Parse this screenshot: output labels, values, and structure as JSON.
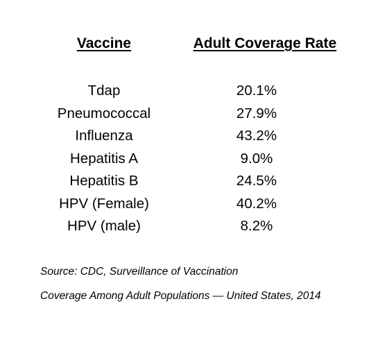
{
  "table": {
    "headers": {
      "vaccine": "Vaccine",
      "rate": "Adult Coverage Rate"
    },
    "rows": [
      {
        "vaccine": "Tdap",
        "rate": "20.1%"
      },
      {
        "vaccine": "Pneumococcal",
        "rate": "27.9%"
      },
      {
        "vaccine": "Influenza",
        "rate": "43.2%"
      },
      {
        "vaccine": "Hepatitis A",
        "rate": "9.0%"
      },
      {
        "vaccine": "Hepatitis B",
        "rate": "24.5%"
      },
      {
        "vaccine": "HPV (Female)",
        "rate": "40.2%"
      },
      {
        "vaccine": "HPV (male)",
        "rate": "8.2%"
      }
    ]
  },
  "source": {
    "line1": "Source: CDC, Surveillance of Vaccination",
    "line2": "Coverage Among Adult Populations — United States, 2014"
  }
}
